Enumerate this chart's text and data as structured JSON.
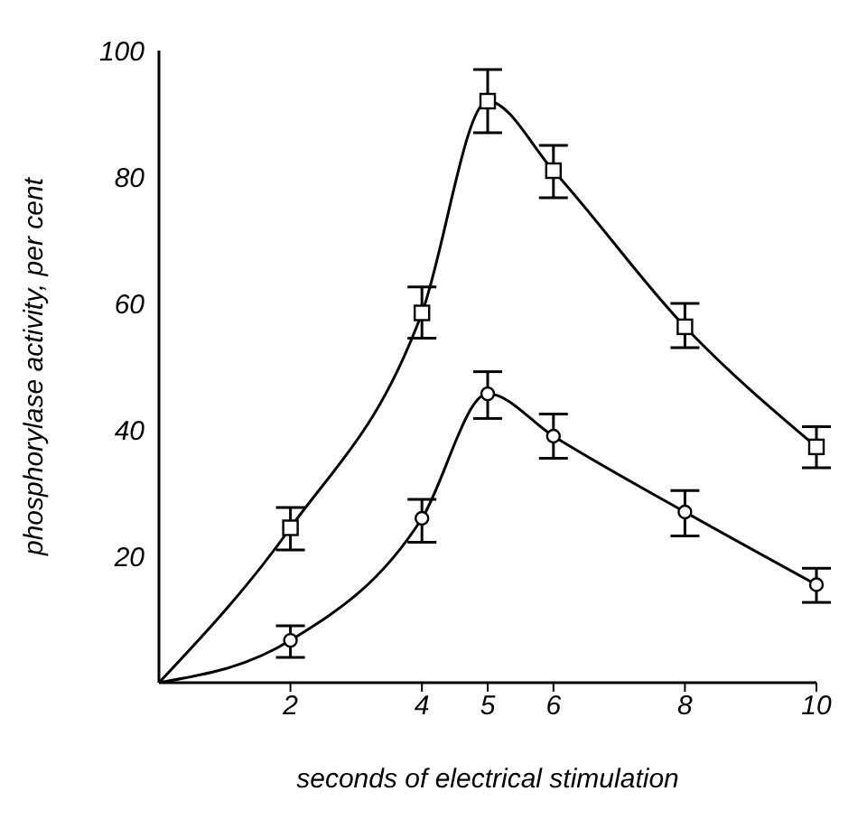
{
  "chart_data": {
    "type": "line",
    "xlabel": "seconds of electrical stimulation",
    "ylabel": "phosphorylase activity, per cent",
    "x": [
      0,
      2,
      4,
      5,
      6,
      8,
      10
    ],
    "xlim": [
      0,
      10
    ],
    "xticks": [
      2,
      4,
      5,
      6,
      8,
      10
    ],
    "ylim": [
      0,
      100
    ],
    "yticks": [
      20,
      40,
      60,
      80,
      100
    ],
    "line_style": "solid",
    "series": [
      {
        "color": "#000000",
        "marker": "square",
        "values": [
          0,
          24.5,
          58.5,
          92,
          81,
          56.3,
          37.3
        ],
        "errors": [
          null,
          [
            21,
            27.7
          ],
          [
            54.5,
            62.6
          ],
          [
            87,
            97
          ],
          [
            76.7,
            85
          ],
          [
            53,
            60
          ],
          [
            34,
            40.5
          ]
        ]
      },
      {
        "color": "#000000",
        "marker": "circle",
        "values": [
          0,
          6.7,
          26,
          45.7,
          39,
          27,
          15.5
        ],
        "errors": [
          null,
          [
            4,
            9
          ],
          [
            22.2,
            29
          ],
          [
            41.8,
            49.2
          ],
          [
            35.5,
            42.5
          ],
          [
            23.2,
            30.4
          ],
          [
            12.7,
            18.1
          ]
        ]
      }
    ]
  }
}
